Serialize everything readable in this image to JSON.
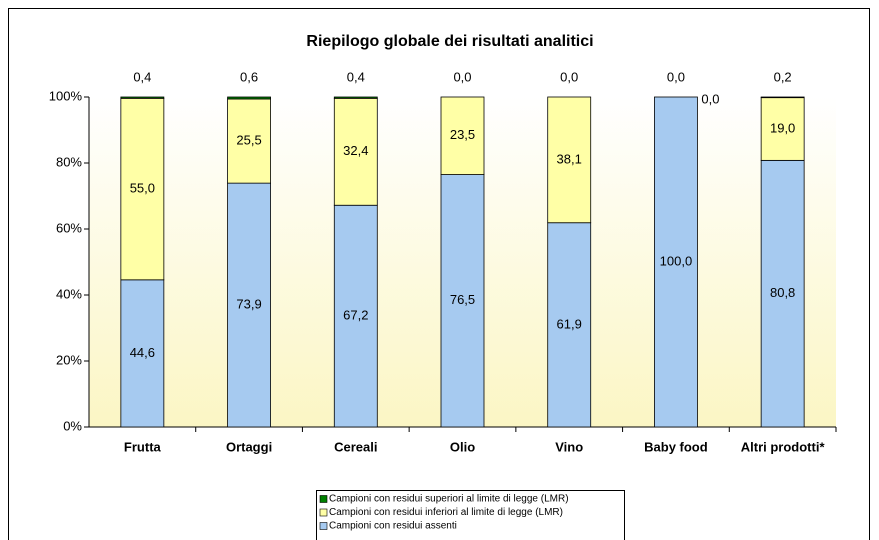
{
  "chart_data": {
    "type": "stacked_bar_100",
    "title": "Riepilogo globale dei risultati analitici",
    "categories": [
      "Frutta",
      "Ortaggi",
      "Cereali",
      "Olio",
      "Vino",
      "Baby  food",
      "Altri prodotti*"
    ],
    "series": [
      {
        "name": "Campioni con residui assenti",
        "color": "#a6caf0",
        "values": [
          44.6,
          73.9,
          67.2,
          76.5,
          61.9,
          100.0,
          80.8
        ],
        "value_labels": [
          "44,6",
          "73,9",
          "67,2",
          "76,5",
          "61,9",
          "100,0",
          "80,8"
        ]
      },
      {
        "name": "Campioni con residui inferiori al limite di legge (LMR)",
        "color": "#ffffa6",
        "values": [
          55.0,
          25.5,
          32.4,
          23.5,
          38.1,
          0.0,
          19.0
        ],
        "value_labels": [
          "55,0",
          "25,5",
          "32,4",
          "23,5",
          "38,1",
          "0,0",
          "19,0"
        ]
      },
      {
        "name": "Campioni con residui superiori al limite di legge (LMR)",
        "color": "#008000",
        "values": [
          0.4,
          0.6,
          0.4,
          0.0,
          0.0,
          0.0,
          0.2
        ],
        "value_labels": [
          "0,4",
          "0,6",
          "0,4",
          "0,0",
          "0,0",
          "0,0",
          "0,2"
        ]
      }
    ],
    "ylim": [
      0,
      100
    ],
    "yticks": [
      {
        "value": 0,
        "label": "0%"
      },
      {
        "value": 20,
        "label": "20%"
      },
      {
        "value": 40,
        "label": "40%"
      },
      {
        "value": 60,
        "label": "60%"
      },
      {
        "value": 80,
        "label": "80%"
      },
      {
        "value": 100,
        "label": "100%"
      }
    ],
    "legend": "bottom"
  }
}
